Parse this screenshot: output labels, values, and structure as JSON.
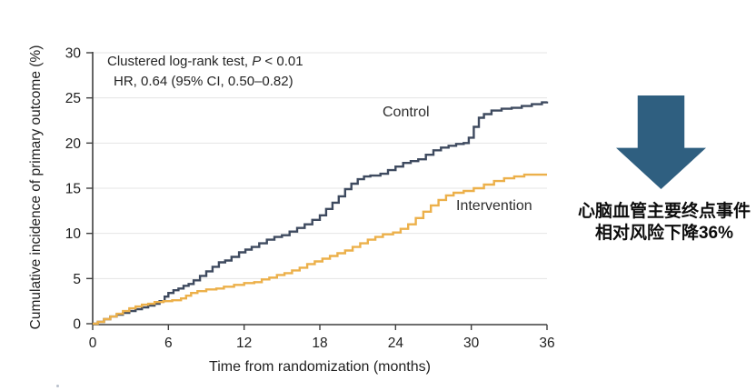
{
  "chart_data": {
    "type": "line",
    "subtype": "kaplan-meier-step",
    "title": "",
    "xlabel": "Time from randomization (months)",
    "ylabel": "Cumulative incidence of primary outcome (%)",
    "xlim": [
      0,
      36
    ],
    "ylim": [
      0,
      30
    ],
    "x_ticks": [
      0,
      6,
      12,
      18,
      24,
      30,
      36
    ],
    "y_ticks": [
      0,
      5,
      10,
      15,
      20,
      25,
      30
    ],
    "grid": true,
    "legend_position": "inline-labels-on-plot",
    "annotations": {
      "line1_pre": "Clustered log-rank test, ",
      "line1_italic": "P",
      "line1_post": " < 0.01",
      "line2": "HR, 0.64 (95% CI, 0.50–0.82)"
    },
    "series": [
      {
        "name": "Control",
        "color": "#3e4a5f",
        "points": [
          [
            0,
            0
          ],
          [
            0.4,
            0.2
          ],
          [
            0.9,
            0.5
          ],
          [
            1.4,
            0.8
          ],
          [
            1.9,
            1.0
          ],
          [
            2.4,
            1.2
          ],
          [
            2.9,
            1.4
          ],
          [
            3.4,
            1.6
          ],
          [
            3.9,
            1.8
          ],
          [
            4.4,
            2.0
          ],
          [
            4.9,
            2.2
          ],
          [
            5.3,
            2.5
          ],
          [
            5.7,
            3.0
          ],
          [
            6.0,
            3.4
          ],
          [
            6.4,
            3.7
          ],
          [
            6.8,
            3.9
          ],
          [
            7.2,
            4.2
          ],
          [
            7.6,
            4.4
          ],
          [
            8.0,
            4.8
          ],
          [
            8.5,
            5.3
          ],
          [
            9.0,
            5.8
          ],
          [
            9.5,
            6.3
          ],
          [
            10.0,
            6.8
          ],
          [
            10.5,
            7.0
          ],
          [
            11.0,
            7.4
          ],
          [
            11.6,
            7.9
          ],
          [
            12.1,
            8.2
          ],
          [
            12.6,
            8.5
          ],
          [
            13.2,
            8.9
          ],
          [
            13.8,
            9.3
          ],
          [
            14.4,
            9.6
          ],
          [
            15.0,
            9.8
          ],
          [
            15.6,
            10.2
          ],
          [
            16.2,
            10.6
          ],
          [
            16.8,
            11.0
          ],
          [
            17.4,
            11.5
          ],
          [
            18.0,
            12.0
          ],
          [
            18.5,
            12.7
          ],
          [
            19.0,
            13.4
          ],
          [
            19.5,
            14.1
          ],
          [
            20.0,
            14.9
          ],
          [
            20.5,
            15.5
          ],
          [
            21.0,
            16.0
          ],
          [
            21.5,
            16.3
          ],
          [
            22.0,
            16.4
          ],
          [
            22.8,
            16.6
          ],
          [
            23.4,
            17.0
          ],
          [
            24.0,
            17.4
          ],
          [
            24.6,
            17.8
          ],
          [
            25.2,
            18.0
          ],
          [
            25.8,
            18.2
          ],
          [
            26.4,
            18.7
          ],
          [
            27.0,
            19.2
          ],
          [
            27.6,
            19.5
          ],
          [
            28.2,
            19.7
          ],
          [
            28.8,
            19.9
          ],
          [
            29.4,
            20.0
          ],
          [
            29.8,
            20.6
          ],
          [
            30.2,
            21.8
          ],
          [
            30.6,
            22.8
          ],
          [
            31.0,
            23.2
          ],
          [
            31.6,
            23.6
          ],
          [
            32.4,
            23.8
          ],
          [
            33.2,
            23.9
          ],
          [
            34.0,
            24.1
          ],
          [
            34.8,
            24.3
          ],
          [
            35.6,
            24.5
          ],
          [
            36.0,
            24.6
          ]
        ]
      },
      {
        "name": "Intervention",
        "color": "#ecb04a",
        "points": [
          [
            0,
            0
          ],
          [
            0.4,
            0.2
          ],
          [
            0.9,
            0.5
          ],
          [
            1.4,
            0.8
          ],
          [
            1.9,
            1.1
          ],
          [
            2.4,
            1.4
          ],
          [
            2.9,
            1.7
          ],
          [
            3.4,
            1.9
          ],
          [
            3.9,
            2.1
          ],
          [
            4.4,
            2.2
          ],
          [
            4.9,
            2.4
          ],
          [
            5.6,
            2.5
          ],
          [
            6.3,
            2.6
          ],
          [
            7.0,
            2.8
          ],
          [
            7.4,
            3.1
          ],
          [
            7.8,
            3.4
          ],
          [
            8.3,
            3.6
          ],
          [
            9.0,
            3.8
          ],
          [
            9.8,
            3.9
          ],
          [
            10.4,
            4.1
          ],
          [
            11.2,
            4.3
          ],
          [
            12.0,
            4.5
          ],
          [
            12.8,
            4.6
          ],
          [
            13.4,
            4.9
          ],
          [
            14.0,
            5.1
          ],
          [
            14.6,
            5.4
          ],
          [
            15.2,
            5.6
          ],
          [
            15.8,
            5.9
          ],
          [
            16.4,
            6.2
          ],
          [
            17.0,
            6.6
          ],
          [
            17.6,
            6.9
          ],
          [
            18.2,
            7.2
          ],
          [
            18.8,
            7.5
          ],
          [
            19.4,
            7.8
          ],
          [
            20.0,
            8.1
          ],
          [
            20.6,
            8.5
          ],
          [
            21.2,
            8.9
          ],
          [
            21.8,
            9.3
          ],
          [
            22.4,
            9.6
          ],
          [
            23.0,
            9.9
          ],
          [
            23.8,
            10.1
          ],
          [
            24.4,
            10.5
          ],
          [
            25.0,
            11.0
          ],
          [
            25.6,
            11.7
          ],
          [
            26.2,
            12.4
          ],
          [
            26.8,
            13.1
          ],
          [
            27.4,
            13.7
          ],
          [
            28.0,
            14.2
          ],
          [
            28.6,
            14.5
          ],
          [
            29.4,
            14.7
          ],
          [
            30.2,
            15.0
          ],
          [
            31.0,
            15.4
          ],
          [
            31.8,
            15.8
          ],
          [
            32.6,
            16.1
          ],
          [
            33.4,
            16.3
          ],
          [
            34.2,
            16.5
          ],
          [
            36.0,
            16.5
          ]
        ]
      }
    ],
    "colors": {
      "axis": "#3f3f3f",
      "grid": "#e5e5e5",
      "text": "#1f1f1f"
    }
  },
  "right_panel": {
    "arrow_color": "#2f5f80",
    "caption_line1": "心脑血管主要终点事件",
    "caption_line2": "相对风险下降36%"
  }
}
